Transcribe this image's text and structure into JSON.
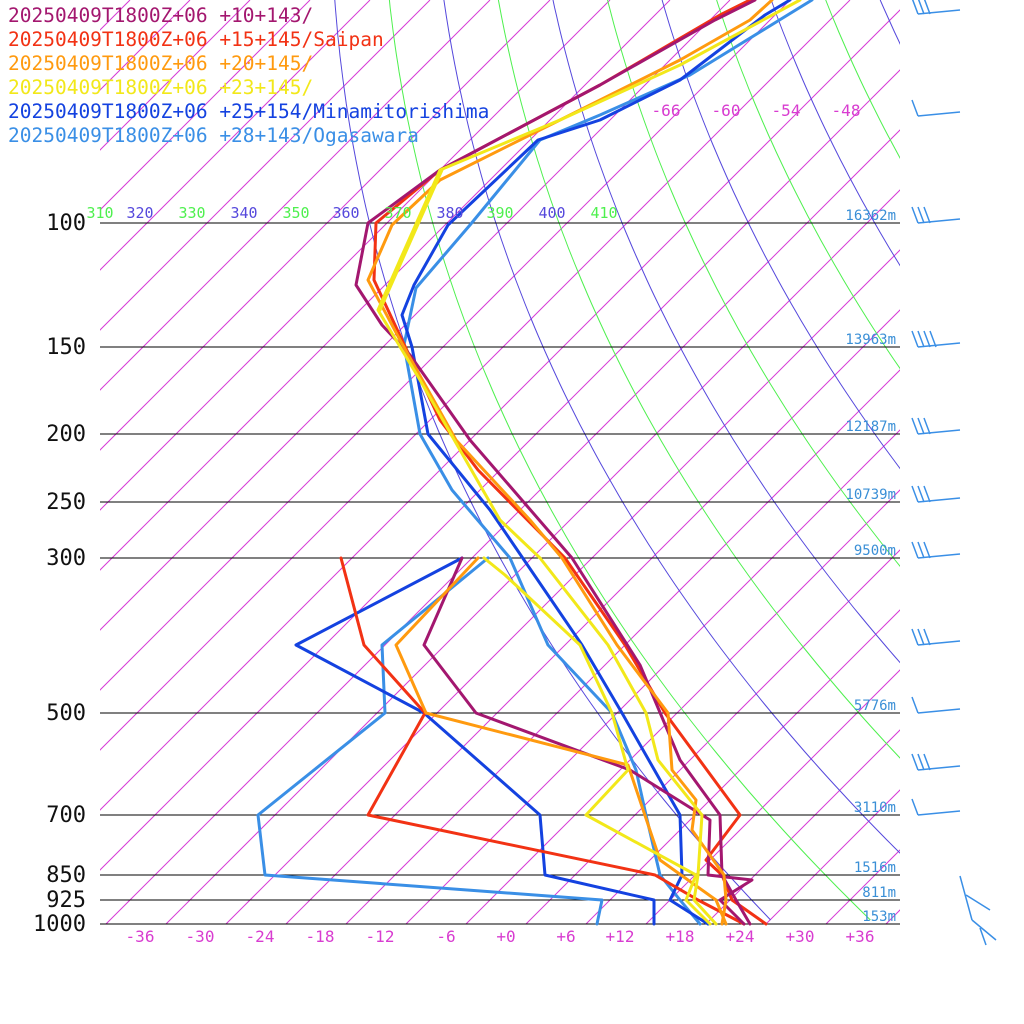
{
  "chart_data": {
    "type": "line",
    "subtype": "skew-T log-P sounding",
    "colors": {
      "isotherm": "#d63cd6",
      "dry_adiabat_green": "#4ef04e",
      "dry_adiabat_blue": "#5548dc",
      "pressure_line": "#000000",
      "height_label": "#3a8fd6"
    },
    "series": [
      {
        "name": "20250409T1800Z+06 +10+143/",
        "color": "#a3176f"
      },
      {
        "name": "20250409T1800Z+06 +15+145/Saipan",
        "color": "#f23214"
      },
      {
        "name": "20250409T1800Z+06 +20+145/",
        "color": "#ff9a0f"
      },
      {
        "name": "20250409T1800Z+06 +23+145/",
        "color": "#f2e81a"
      },
      {
        "name": "20250409T1800Z+06 +25+154/Minamitorishima",
        "color": "#1442e0"
      },
      {
        "name": "20250409T1800Z+06 +28+143/Ogasawara",
        "color": "#3a8fe6"
      }
    ],
    "pressure_levels": [
      {
        "p": 100,
        "label": "100",
        "height": "16362m"
      },
      {
        "p": 150,
        "label": "150",
        "height": "13963m"
      },
      {
        "p": 200,
        "label": "200",
        "height": "12187m"
      },
      {
        "p": 250,
        "label": "250",
        "height": "10739m"
      },
      {
        "p": 300,
        "label": "300",
        "height": "9500m"
      },
      {
        "p": 500,
        "label": "500",
        "height": "5776m"
      },
      {
        "p": 700,
        "label": "700",
        "height": "3110m"
      },
      {
        "p": 850,
        "label": "850",
        "height": "1516m"
      },
      {
        "p": 925,
        "label": "925",
        "height": "811m"
      },
      {
        "p": 1000,
        "label": "1000",
        "height": "153m"
      }
    ],
    "x_ticks": [
      "-36",
      "-30",
      "-24",
      "-18",
      "-12",
      "-6",
      "+0",
      "+6",
      "+12",
      "+18",
      "+24",
      "+30",
      "+36"
    ],
    "top_isotherm_labels": [
      "-66",
      "-60",
      "-54",
      "-48"
    ],
    "theta_labels": [
      {
        "text": "310",
        "color": "#4ef04e"
      },
      {
        "text": "320",
        "color": "#5548dc"
      },
      {
        "text": "330",
        "color": "#4ef04e"
      },
      {
        "text": "340",
        "color": "#5548dc"
      },
      {
        "text": "350",
        "color": "#4ef04e"
      },
      {
        "text": "360",
        "color": "#5548dc"
      },
      {
        "text": "370",
        "color": "#4ef04e"
      },
      {
        "text": "380",
        "color": "#5548dc"
      },
      {
        "text": "390",
        "color": "#4ef04e"
      },
      {
        "text": "400",
        "color": "#5548dc"
      },
      {
        "text": "410",
        "color": "#4ef04e"
      }
    ]
  }
}
